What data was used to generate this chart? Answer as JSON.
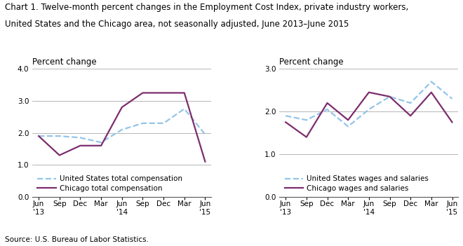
{
  "title_line1": "Chart 1. Twelve-month percent changes in the Employment Cost Index, private industry workers,",
  "title_line2": "United States and the Chicago area, not seasonally adjusted, June 2013–June 2015",
  "source": "Source: U.S. Bureau of Labor Statistics.",
  "x_labels": [
    "Jun\n'13",
    "Sep",
    "Dec",
    "Mar",
    "Jun\n'14",
    "Sep",
    "Dec",
    "Mar",
    "Jun\n'15"
  ],
  "left_chart": {
    "ylabel": "Percent change",
    "ylim": [
      0.0,
      4.0
    ],
    "yticks": [
      0.0,
      1.0,
      2.0,
      3.0,
      4.0
    ],
    "us_total_comp": [
      1.9,
      1.9,
      1.85,
      1.7,
      2.1,
      2.3,
      2.3,
      2.75,
      1.95
    ],
    "chi_total_comp": [
      1.9,
      1.3,
      1.6,
      1.6,
      2.8,
      3.25,
      3.25,
      3.25,
      1.1
    ],
    "legend": [
      "United States total compensation",
      "Chicago total compensation"
    ]
  },
  "right_chart": {
    "ylabel": "Percent change",
    "ylim": [
      0.0,
      3.0
    ],
    "yticks": [
      0.0,
      1.0,
      2.0,
      3.0
    ],
    "us_wages_sal": [
      1.9,
      1.8,
      2.05,
      1.65,
      2.05,
      2.35,
      2.2,
      2.7,
      2.3
    ],
    "chi_wages_sal": [
      1.75,
      1.4,
      2.2,
      1.8,
      2.45,
      2.35,
      1.9,
      2.45,
      1.75
    ],
    "legend": [
      "United States wages and salaries",
      "Chicago wages and salaries"
    ]
  },
  "us_color": "#92C5E8",
  "chi_color": "#7B2D6E",
  "us_linestyle": "--",
  "chi_linestyle": "-",
  "linewidth": 1.6,
  "grid_color": "#AAAAAA",
  "background_color": "#FFFFFF",
  "title_fontsize": 8.5,
  "label_fontsize": 8.5,
  "tick_fontsize": 7.5,
  "legend_fontsize": 7.5
}
